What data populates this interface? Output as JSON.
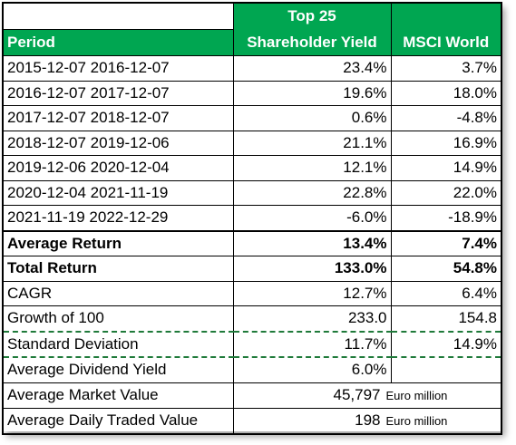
{
  "header": {
    "period_label": "Period",
    "col2_line1": "Top 25",
    "col2_line2": "Shareholder Yield",
    "col3_label": "MSCI World"
  },
  "periods": [
    {
      "label": "2015-12-07 2016-12-07",
      "top25": "23.4%",
      "msci": "3.7%"
    },
    {
      "label": "2016-12-07 2017-12-07",
      "top25": "19.6%",
      "msci": "18.0%"
    },
    {
      "label": "2017-12-07 2018-12-07",
      "top25": "0.6%",
      "msci": "-4.8%"
    },
    {
      "label": "2018-12-07 2019-12-06",
      "top25": "21.1%",
      "msci": "16.9%"
    },
    {
      "label": "2019-12-06 2020-12-04",
      "top25": "12.1%",
      "msci": "14.9%"
    },
    {
      "label": "2020-12-04 2021-11-19",
      "top25": "22.8%",
      "msci": "22.0%"
    },
    {
      "label": "2021-11-19 2022-12-29",
      "top25": "-6.0%",
      "msci": "-18.9%"
    }
  ],
  "summary": {
    "average_return": {
      "label": "Average Return",
      "top25": "13.4%",
      "msci": "7.4%"
    },
    "total_return": {
      "label": "Total Return",
      "top25": "133.0%",
      "msci": "54.8%"
    },
    "cagr": {
      "label": "CAGR",
      "top25": "12.7%",
      "msci": "6.4%"
    },
    "growth_of_100": {
      "label": "Growth of 100",
      "top25": "233.0",
      "msci": "154.8"
    },
    "std_dev": {
      "label": "Standard Deviation",
      "top25": "11.7%",
      "msci": "14.9%"
    },
    "avg_dividend_yield": {
      "label": "Average Dividend Yield",
      "top25": "6.0%",
      "msci": ""
    },
    "avg_market_value": {
      "label": "Average Market Value",
      "top25": "45,797",
      "unit": "Euro million"
    },
    "avg_daily_traded": {
      "label": "Average Daily Traded Value",
      "top25": "198",
      "unit": "Euro million"
    }
  },
  "colors": {
    "header_green": "#00a651",
    "dash_green": "#1f7a3a"
  }
}
